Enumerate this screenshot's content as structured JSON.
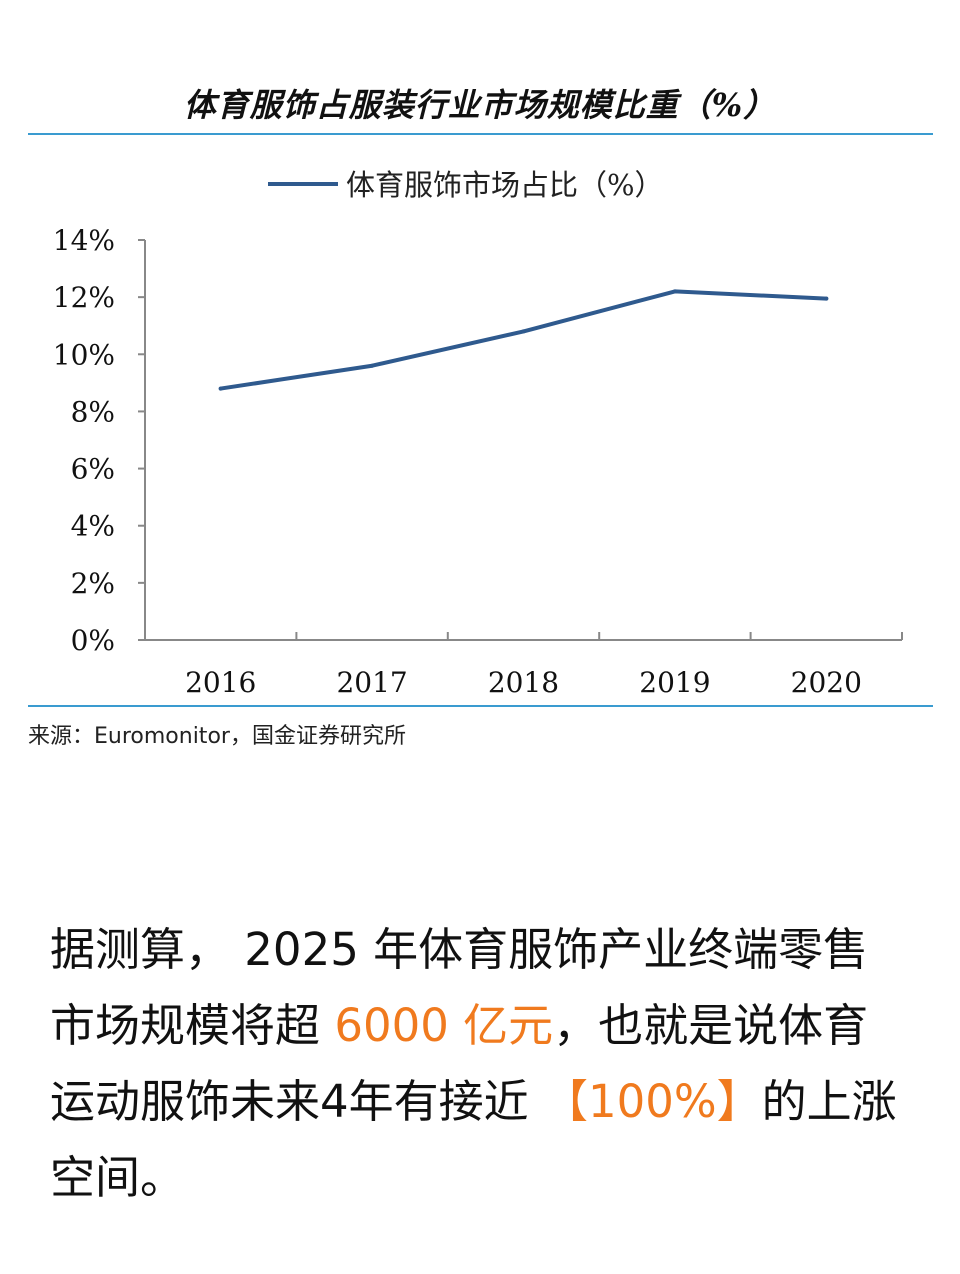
{
  "page": {
    "title": "体育服饰占服装行业市场规模比重（%）",
    "source": "来源：Euromonitor，国金证券研究所",
    "paragraph": {
      "p1": "据测算， 2025 年体育服饰产业终端零售市场规模将超 ",
      "h1": "6000 亿元",
      "p2": "，也就是说体育运动服饰未来4年有接近 ",
      "h2": "【100%】",
      "p3": "的上涨空间。"
    },
    "colors": {
      "line": "#2f5a8e",
      "rule": "#3a9bd0",
      "highlight": "#f07a1e"
    }
  },
  "chart_data": {
    "type": "line",
    "title": "体育服饰占服装行业市场规模比重（%）",
    "categories": [
      "2016",
      "2017",
      "2018",
      "2019",
      "2020"
    ],
    "series": [
      {
        "name": "体育服饰市场占比（%）",
        "values": [
          8.8,
          9.6,
          10.8,
          12.2,
          11.95
        ]
      }
    ],
    "ylim": [
      0,
      14
    ],
    "yticks": [
      "0%",
      "2%",
      "4%",
      "6%",
      "8%",
      "10%",
      "12%",
      "14%"
    ],
    "legend": "top-center",
    "grid": false
  }
}
